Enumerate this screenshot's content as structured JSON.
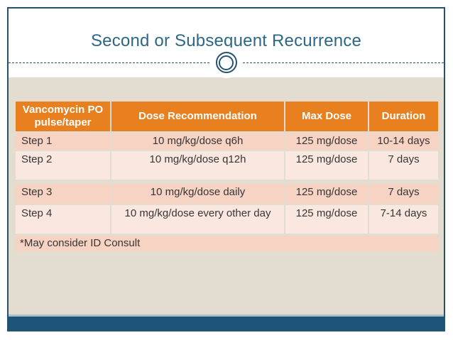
{
  "slide": {
    "title": "Second or Subsequent Recurrence",
    "footnote": "*May consider ID Consult"
  },
  "table": {
    "headers": [
      "Vancomycin PO pulse/taper",
      "Dose Recommendation",
      "Max Dose",
      "Duration"
    ],
    "rows": [
      {
        "step": "Step 1",
        "dose": "10 mg/kg/dose q6h",
        "max_dose": "125 mg/dose",
        "duration": "10-14 days"
      },
      {
        "step": "Step 2",
        "dose": "10 mg/kg/dose q12h",
        "max_dose": "125 mg/dose",
        "duration": "7 days"
      },
      {
        "step": "Step 3",
        "dose": "10 mg/kg/dose daily",
        "max_dose": "125 mg/dose",
        "duration": "7 days"
      },
      {
        "step": "Step 4",
        "dose": "10 mg/kg/dose every other day",
        "max_dose": "125 mg/dose",
        "duration": "7-14 days"
      }
    ]
  },
  "colors": {
    "header_orange": "#E8801F",
    "row_salmon_dark": "#F7D3C3",
    "row_salmon_light": "#FAE8E0",
    "body_beige": "#E2DDD0",
    "frame_navy": "#26536B",
    "title_blue": "#2D6787",
    "bottom_bar_blue": "#1E5477"
  }
}
